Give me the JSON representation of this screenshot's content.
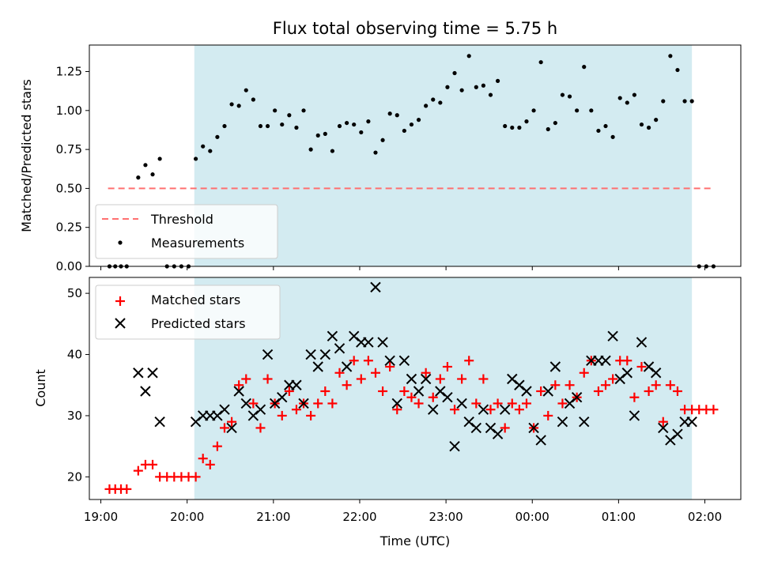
{
  "chart_data": [
    {
      "type": "scatter",
      "title": "Flux total observing time = 5.75 h",
      "ylabel": "Matched/Predicted stars",
      "xlim": [
        "18:52",
        "02:25"
      ],
      "ylim": [
        0,
        1.42
      ],
      "yticks": [
        "0.00",
        "0.25",
        "0.50",
        "0.75",
        "1.00",
        "1.25"
      ],
      "grid": false,
      "legend_position": "lower-left",
      "shaded_interval": {
        "start": "20:05",
        "end": "01:51",
        "color": "#add8e6"
      },
      "threshold": {
        "name": "Threshold",
        "value": 0.5,
        "x_start": "19:05",
        "x_end": "02:05",
        "color": "#ff7070"
      },
      "series": [
        {
          "name": "Measurements",
          "color": "#000000",
          "marker": "dot",
          "points": [
            [
              "19:06",
              0
            ],
            [
              "19:10",
              0
            ],
            [
              "19:14",
              0
            ],
            [
              "19:18",
              0
            ],
            [
              "19:26",
              0.57
            ],
            [
              "19:31",
              0.65
            ],
            [
              "19:36",
              0.59
            ],
            [
              "19:41",
              0.69
            ],
            [
              "19:46",
              0
            ],
            [
              "19:51",
              0
            ],
            [
              "19:56",
              0
            ],
            [
              "20:01",
              0
            ],
            [
              "20:06",
              0.69
            ],
            [
              "20:11",
              0.77
            ],
            [
              "20:16",
              0.74
            ],
            [
              "20:21",
              0.83
            ],
            [
              "20:26",
              0.9
            ],
            [
              "20:31",
              1.04
            ],
            [
              "20:36",
              1.03
            ],
            [
              "20:41",
              1.13
            ],
            [
              "20:46",
              1.07
            ],
            [
              "20:51",
              0.9
            ],
            [
              "20:56",
              0.9
            ],
            [
              "21:01",
              1.0
            ],
            [
              "21:06",
              0.91
            ],
            [
              "21:11",
              0.97
            ],
            [
              "21:16",
              0.89
            ],
            [
              "21:21",
              1.0
            ],
            [
              "21:26",
              0.75
            ],
            [
              "21:31",
              0.84
            ],
            [
              "21:36",
              0.85
            ],
            [
              "21:41",
              0.74
            ],
            [
              "21:46",
              0.9
            ],
            [
              "21:51",
              0.92
            ],
            [
              "21:56",
              0.91
            ],
            [
              "22:01",
              0.86
            ],
            [
              "22:06",
              0.93
            ],
            [
              "22:11",
              0.73
            ],
            [
              "22:16",
              0.81
            ],
            [
              "22:21",
              0.98
            ],
            [
              "22:26",
              0.97
            ],
            [
              "22:31",
              0.87
            ],
            [
              "22:36",
              0.91
            ],
            [
              "22:41",
              0.94
            ],
            [
              "22:46",
              1.03
            ],
            [
              "22:51",
              1.07
            ],
            [
              "22:56",
              1.05
            ],
            [
              "23:01",
              1.15
            ],
            [
              "23:06",
              1.24
            ],
            [
              "23:11",
              1.13
            ],
            [
              "23:16",
              1.35
            ],
            [
              "23:21",
              1.15
            ],
            [
              "23:26",
              1.16
            ],
            [
              "23:31",
              1.1
            ],
            [
              "23:36",
              1.19
            ],
            [
              "23:41",
              0.9
            ],
            [
              "23:46",
              0.89
            ],
            [
              "23:51",
              0.89
            ],
            [
              "23:56",
              0.93
            ],
            [
              "00:01",
              1.0
            ],
            [
              "00:06",
              1.31
            ],
            [
              "00:11",
              0.88
            ],
            [
              "00:16",
              0.92
            ],
            [
              "00:21",
              1.1
            ],
            [
              "00:26",
              1.09
            ],
            [
              "00:31",
              1.0
            ],
            [
              "00:36",
              1.28
            ],
            [
              "00:41",
              1.0
            ],
            [
              "00:46",
              0.87
            ],
            [
              "00:51",
              0.9
            ],
            [
              "00:56",
              0.83
            ],
            [
              "01:01",
              1.08
            ],
            [
              "01:06",
              1.05
            ],
            [
              "01:11",
              1.1
            ],
            [
              "01:16",
              0.91
            ],
            [
              "01:21",
              0.89
            ],
            [
              "01:26",
              0.94
            ],
            [
              "01:31",
              1.06
            ],
            [
              "01:36",
              1.35
            ],
            [
              "01:41",
              1.26
            ],
            [
              "01:46",
              1.06
            ],
            [
              "01:51",
              1.06
            ],
            [
              "01:56",
              0
            ],
            [
              "02:01",
              0
            ],
            [
              "02:06",
              0
            ]
          ]
        }
      ]
    },
    {
      "type": "scatter",
      "title": "",
      "xlabel": "Time (UTC)",
      "ylabel": "Count",
      "xlim": [
        "18:52",
        "02:25"
      ],
      "ylim": [
        16.3,
        52.6
      ],
      "xticks": [
        "19:00",
        "20:00",
        "21:00",
        "22:00",
        "23:00",
        "00:00",
        "01:00",
        "02:00"
      ],
      "yticks": [
        "20",
        "30",
        "40",
        "50"
      ],
      "grid": false,
      "legend_position": "upper-left",
      "shaded_interval": {
        "start": "20:05",
        "end": "01:51",
        "color": "#add8e6"
      },
      "series": [
        {
          "name": "Matched stars",
          "color": "#ff0000",
          "marker": "plus",
          "points": [
            [
              "19:06",
              18
            ],
            [
              "19:10",
              18
            ],
            [
              "19:14",
              18
            ],
            [
              "19:18",
              18
            ],
            [
              "19:26",
              21
            ],
            [
              "19:31",
              22
            ],
            [
              "19:36",
              22
            ],
            [
              "19:41",
              20
            ],
            [
              "19:46",
              20
            ],
            [
              "19:51",
              20
            ],
            [
              "19:56",
              20
            ],
            [
              "20:01",
              20
            ],
            [
              "20:06",
              20
            ],
            [
              "20:11",
              23
            ],
            [
              "20:16",
              22
            ],
            [
              "20:21",
              25
            ],
            [
              "20:26",
              28
            ],
            [
              "20:31",
              29
            ],
            [
              "20:36",
              35
            ],
            [
              "20:41",
              36
            ],
            [
              "20:46",
              32
            ],
            [
              "20:51",
              28
            ],
            [
              "20:56",
              36
            ],
            [
              "21:01",
              32
            ],
            [
              "21:06",
              30
            ],
            [
              "21:11",
              34
            ],
            [
              "21:16",
              31
            ],
            [
              "21:21",
              32
            ],
            [
              "21:26",
              30
            ],
            [
              "21:31",
              32
            ],
            [
              "21:36",
              34
            ],
            [
              "21:41",
              32
            ],
            [
              "21:46",
              37
            ],
            [
              "21:51",
              35
            ],
            [
              "21:56",
              39
            ],
            [
              "22:01",
              36
            ],
            [
              "22:06",
              39
            ],
            [
              "22:11",
              37
            ],
            [
              "22:16",
              34
            ],
            [
              "22:21",
              38
            ],
            [
              "22:26",
              31
            ],
            [
              "22:31",
              34
            ],
            [
              "22:36",
              33
            ],
            [
              "22:41",
              32
            ],
            [
              "22:46",
              37
            ],
            [
              "22:51",
              33
            ],
            [
              "22:56",
              36
            ],
            [
              "23:01",
              38
            ],
            [
              "23:06",
              31
            ],
            [
              "23:11",
              36
            ],
            [
              "23:16",
              39
            ],
            [
              "23:21",
              32
            ],
            [
              "23:26",
              36
            ],
            [
              "23:31",
              31
            ],
            [
              "23:36",
              32
            ],
            [
              "23:41",
              28
            ],
            [
              "23:46",
              32
            ],
            [
              "23:51",
              31
            ],
            [
              "23:56",
              32
            ],
            [
              "00:01",
              28
            ],
            [
              "00:06",
              34
            ],
            [
              "00:11",
              30
            ],
            [
              "00:16",
              35
            ],
            [
              "00:21",
              32
            ],
            [
              "00:26",
              35
            ],
            [
              "00:31",
              33
            ],
            [
              "00:36",
              37
            ],
            [
              "00:41",
              39
            ],
            [
              "00:46",
              34
            ],
            [
              "00:51",
              35
            ],
            [
              "00:56",
              36
            ],
            [
              "01:01",
              39
            ],
            [
              "01:06",
              39
            ],
            [
              "01:11",
              33
            ],
            [
              "01:16",
              38
            ],
            [
              "01:21",
              34
            ],
            [
              "01:26",
              35
            ],
            [
              "01:31",
              29
            ],
            [
              "01:36",
              35
            ],
            [
              "01:41",
              34
            ],
            [
              "01:46",
              31
            ],
            [
              "01:51",
              31
            ],
            [
              "01:56",
              31
            ],
            [
              "02:01",
              31
            ],
            [
              "02:06",
              31
            ]
          ]
        },
        {
          "name": "Predicted stars",
          "color": "#000000",
          "marker": "x",
          "points": [
            [
              "19:26",
              37
            ],
            [
              "19:31",
              34
            ],
            [
              "19:36",
              37
            ],
            [
              "19:41",
              29
            ],
            [
              "20:06",
              29
            ],
            [
              "20:11",
              30
            ],
            [
              "20:16",
              30
            ],
            [
              "20:21",
              30
            ],
            [
              "20:26",
              31
            ],
            [
              "20:31",
              28
            ],
            [
              "20:36",
              34
            ],
            [
              "20:41",
              32
            ],
            [
              "20:46",
              30
            ],
            [
              "20:51",
              31
            ],
            [
              "20:56",
              40
            ],
            [
              "21:01",
              32
            ],
            [
              "21:06",
              33
            ],
            [
              "21:11",
              35
            ],
            [
              "21:16",
              35
            ],
            [
              "21:21",
              32
            ],
            [
              "21:26",
              40
            ],
            [
              "21:31",
              38
            ],
            [
              "21:36",
              40
            ],
            [
              "21:41",
              43
            ],
            [
              "21:46",
              41
            ],
            [
              "21:51",
              38
            ],
            [
              "21:56",
              43
            ],
            [
              "22:01",
              42
            ],
            [
              "22:06",
              42
            ],
            [
              "22:11",
              51
            ],
            [
              "22:16",
              42
            ],
            [
              "22:21",
              39
            ],
            [
              "22:26",
              32
            ],
            [
              "22:31",
              39
            ],
            [
              "22:36",
              36
            ],
            [
              "22:41",
              34
            ],
            [
              "22:46",
              36
            ],
            [
              "22:51",
              31
            ],
            [
              "22:56",
              34
            ],
            [
              "23:01",
              33
            ],
            [
              "23:06",
              25
            ],
            [
              "23:11",
              32
            ],
            [
              "23:16",
              29
            ],
            [
              "23:21",
              28
            ],
            [
              "23:26",
              31
            ],
            [
              "23:31",
              28
            ],
            [
              "23:36",
              27
            ],
            [
              "23:41",
              31
            ],
            [
              "23:46",
              36
            ],
            [
              "23:51",
              35
            ],
            [
              "23:56",
              34
            ],
            [
              "00:01",
              28
            ],
            [
              "00:06",
              26
            ],
            [
              "00:11",
              34
            ],
            [
              "00:16",
              38
            ],
            [
              "00:21",
              29
            ],
            [
              "00:26",
              32
            ],
            [
              "00:31",
              33
            ],
            [
              "00:36",
              29
            ],
            [
              "00:41",
              39
            ],
            [
              "00:46",
              39
            ],
            [
              "00:51",
              39
            ],
            [
              "00:56",
              43
            ],
            [
              "01:01",
              36
            ],
            [
              "01:06",
              37
            ],
            [
              "01:11",
              30
            ],
            [
              "01:16",
              42
            ],
            [
              "01:21",
              38
            ],
            [
              "01:26",
              37
            ],
            [
              "01:31",
              28
            ],
            [
              "01:36",
              26
            ],
            [
              "01:41",
              27
            ],
            [
              "01:46",
              29
            ],
            [
              "01:51",
              29
            ]
          ]
        }
      ]
    }
  ]
}
